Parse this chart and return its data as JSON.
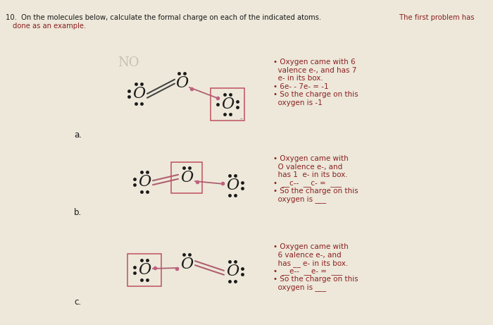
{
  "bg_color": "#ede8da",
  "text_color_black": "#1a1a1a",
  "text_color_red": "#8b2020",
  "bullet_color": "#8b2020",
  "dot_color": "#1a1a1a",
  "pink_color": "#c06080",
  "bond_color_dark": "#444444",
  "bond_color_pink": "#b06070",
  "box_color": "#c05060",
  "title_main": "10.  On the molecules below, calculate the formal charge on each of the indicated atoms.",
  "title_red_part": " The first problem has",
  "subtitle": "done as an example.",
  "NO_label": "NO",
  "label_a": "a.",
  "label_b": "b.",
  "label_c": "c.",
  "text_a": [
    "• Oxygen came with 6",
    "  valence e-, and has 7",
    "  e- in its box.",
    "• 6e- - 7e- = -1",
    "• So the charge on this",
    "  oxygen is -1"
  ],
  "text_b": [
    "• Oxygen came with",
    "  O valence e-, and",
    "  has 1  e- in its box.",
    "•  __c--  __c- =  ___",
    "• So the charge on this",
    "  oxygen is ___"
  ],
  "text_c": [
    "• Oxygen came with",
    "  6 valence e-, and",
    "  has __ e- in its box.",
    "•  __e--  __e- =  ___",
    "• So the charge on this",
    "  oxygen is ___"
  ]
}
